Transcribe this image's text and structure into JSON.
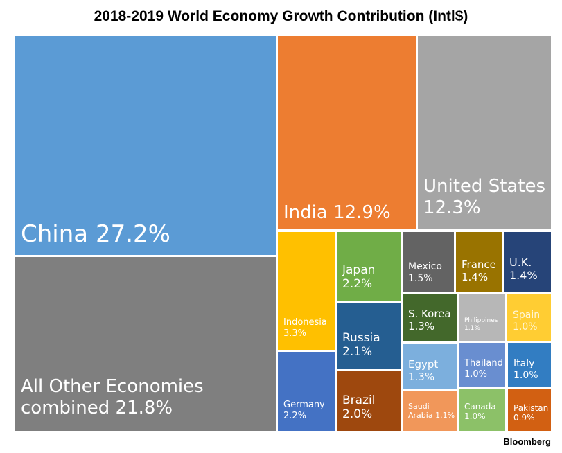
{
  "chart_data": {
    "type": "treemap",
    "title": "2018-2019 World Economy Growth Contribution (Intl$)",
    "source": "Bloomberg",
    "unit": "%",
    "items": [
      {
        "name": "China",
        "value": "27.2%",
        "color": "#5B9BD5"
      },
      {
        "name": "All Other Economies combined",
        "value": "21.8%",
        "color": "#7F7F7F"
      },
      {
        "name": "India",
        "value": "12.9%",
        "color": "#ED7D31"
      },
      {
        "name": "United States",
        "value": "12.3%",
        "color": "#A5A5A5"
      },
      {
        "name": "Indonesia",
        "value": "3.3%",
        "color": "#FFC000"
      },
      {
        "name": "Germany",
        "value": "2.2%",
        "color": "#4472C4"
      },
      {
        "name": "Japan",
        "value": "2.2%",
        "color": "#70AD47"
      },
      {
        "name": "Russia",
        "value": "2.1%",
        "color": "#255E91"
      },
      {
        "name": "Brazil",
        "value": "2.0%",
        "color": "#9E480E"
      },
      {
        "name": "Mexico",
        "value": "1.5%",
        "color": "#636363"
      },
      {
        "name": "France",
        "value": "1.4%",
        "color": "#997300"
      },
      {
        "name": "U.K.",
        "value": "1.4%",
        "color": "#264478"
      },
      {
        "name": "S. Korea",
        "value": "1.3%",
        "color": "#43682B"
      },
      {
        "name": "Philippines",
        "value": "1.1%",
        "color": "#B7B7B7"
      },
      {
        "name": "Spain",
        "value": "1.0%",
        "color": "#FFCD33"
      },
      {
        "name": "Egypt",
        "value": "1.3%",
        "color": "#7CAFDD"
      },
      {
        "name": "Thailand",
        "value": "1.0%",
        "color": "#698ED0"
      },
      {
        "name": "Italy",
        "value": "1.0%",
        "color": "#327DC2"
      },
      {
        "name": "Saudi Arabia",
        "value": "1.1%",
        "color": "#F1975A"
      },
      {
        "name": "Canada",
        "value": "1.0%",
        "color": "#8CC168"
      },
      {
        "name": "Pakistan",
        "value": "0.9%",
        "color": "#D26012"
      }
    ]
  }
}
